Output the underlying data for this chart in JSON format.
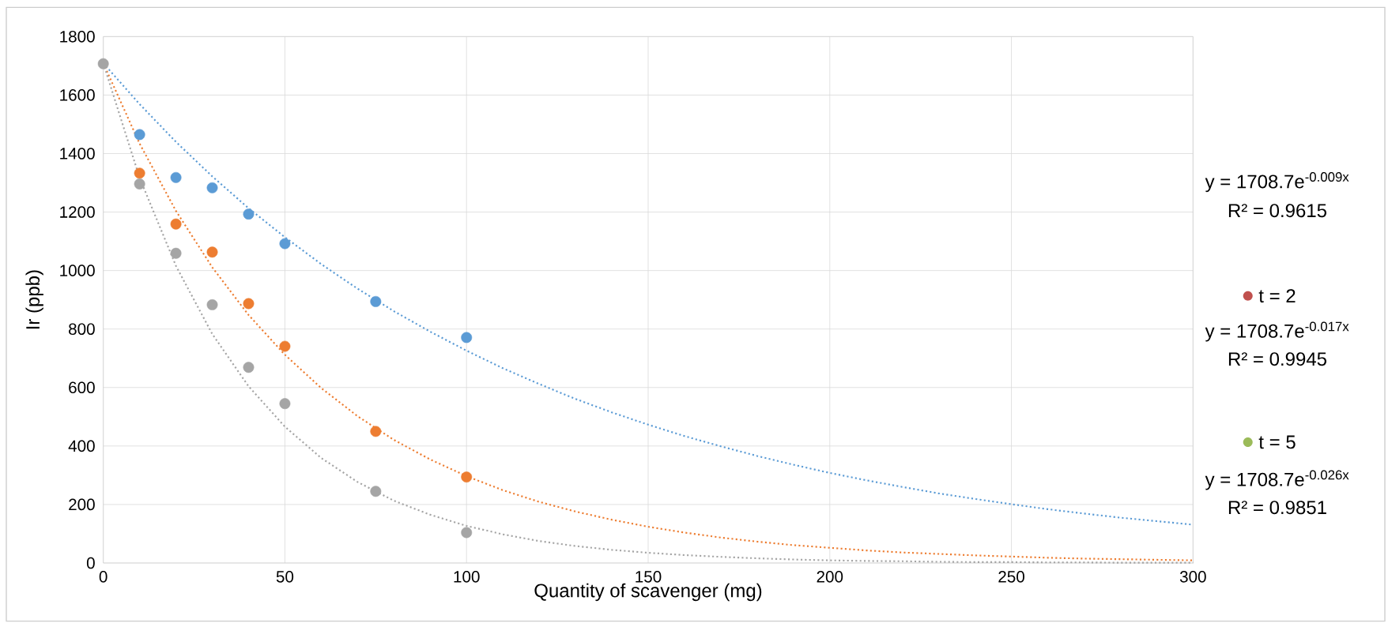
{
  "chart_data": {
    "type": "scatter",
    "xlabel": "Quantity of scavenger (mg)",
    "ylabel": "Ir (ppb)",
    "xlim": [
      0,
      300
    ],
    "xticks": [
      0,
      50,
      100,
      150,
      200,
      250,
      300
    ],
    "ylim": [
      0,
      1800
    ],
    "yticks": [
      0,
      200,
      400,
      600,
      800,
      1000,
      1200,
      1400,
      1600,
      1800
    ],
    "grid": true,
    "marker": "circle",
    "x": [
      0,
      10,
      20,
      30,
      40,
      50,
      75,
      100
    ],
    "series": [
      {
        "color": "#5b9bd5",
        "values": [
          null,
          1465,
          1318,
          1283,
          1193,
          1092,
          894,
          771
        ]
      },
      {
        "color": "#ed7d31",
        "values": [
          null,
          1333,
          1159,
          1063,
          887,
          741,
          450,
          294
        ]
      },
      {
        "color": "#a5a5a5",
        "values": [
          1707,
          1296,
          1059,
          883,
          669,
          545,
          245,
          104
        ]
      },
      {
        "type": "line",
        "line_style": "dotted",
        "marker": "none",
        "color": "#5b9bd5",
        "x": [
          0,
          10,
          20,
          30,
          40,
          50,
          60,
          70,
          80,
          90,
          100,
          110,
          120,
          130,
          140,
          150,
          160,
          170,
          180,
          190,
          200,
          210,
          220,
          230,
          240,
          250,
          260,
          270,
          280,
          290,
          300
        ],
        "values": [
          1709,
          1569,
          1440,
          1322,
          1213,
          1114,
          1022,
          938,
          861,
          791,
          726,
          666,
          612,
          561,
          515,
          473,
          434,
          399,
          366,
          336,
          308,
          283,
          260,
          238,
          219,
          201,
          184,
          169,
          155,
          143,
          131
        ]
      },
      {
        "type": "line",
        "line_style": "dotted",
        "marker": "none",
        "color": "#ed7d31",
        "x": [
          0,
          10,
          20,
          30,
          40,
          50,
          60,
          70,
          80,
          90,
          100,
          110,
          120,
          130,
          140,
          150,
          160,
          170,
          180,
          190,
          200,
          210,
          220,
          230,
          240,
          250,
          260,
          270,
          280,
          290,
          300
        ],
        "values": [
          1709,
          1434,
          1204,
          1011,
          848,
          712,
          598,
          502,
          421,
          354,
          297,
          249,
          209,
          176,
          148,
          124,
          104,
          87,
          73,
          61,
          52,
          43,
          36,
          31,
          26,
          22,
          18,
          15,
          13,
          11,
          9
        ]
      },
      {
        "type": "line",
        "line_style": "dotted",
        "marker": "none",
        "color": "#a5a5a5",
        "x": [
          0,
          10,
          20,
          30,
          40,
          50,
          60,
          70,
          80,
          90,
          100,
          110,
          120,
          130,
          140,
          150,
          160,
          170,
          180,
          190,
          200,
          210,
          220,
          230,
          240,
          250,
          260,
          270,
          280,
          290,
          300
        ],
        "values": [
          1709,
          1317,
          1016,
          783,
          604,
          466,
          359,
          277,
          213,
          165,
          127,
          98,
          75,
          58,
          45,
          35,
          27,
          21,
          16,
          12,
          9,
          7,
          6,
          4,
          3,
          3,
          2,
          2,
          1,
          1,
          1
        ]
      }
    ],
    "annotations": [
      "y = 1708.7e$^{-0.009x}$",
      "R² = 0.9615",
      "t = 2",
      "y = 1708.7e$^{-0.017x}$",
      "R² = 0.9945",
      "t = 5",
      "y = 1708.7e$^{-0.026x}$",
      "R² = 0.9851"
    ]
  }
}
